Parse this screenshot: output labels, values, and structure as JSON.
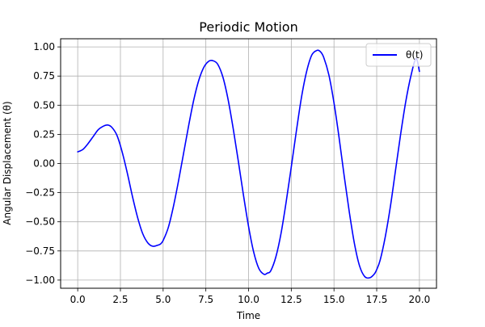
{
  "chart_data": {
    "type": "line",
    "title": "Periodic Motion",
    "xlabel": "Time",
    "ylabel": "Angular Displacement (θ)",
    "xlim": [
      -1.0,
      21.0
    ],
    "ylim": [
      -1.07,
      1.07
    ],
    "xticks": [
      0.0,
      2.5,
      5.0,
      7.5,
      10.0,
      12.5,
      15.0,
      17.5,
      20.0
    ],
    "xtick_labels": [
      "0.0",
      "2.5",
      "5.0",
      "7.5",
      "10.0",
      "12.5",
      "15.0",
      "17.5",
      "20.0"
    ],
    "yticks": [
      -1.0,
      -0.75,
      -0.5,
      -0.25,
      0.0,
      0.25,
      0.5,
      0.75,
      1.0
    ],
    "ytick_labels": [
      "−1.00",
      "−0.75",
      "−0.50",
      "−0.25",
      "0.00",
      "0.25",
      "0.50",
      "0.75",
      "1.00"
    ],
    "grid": true,
    "legend_position": "top-right",
    "series": [
      {
        "name": "θ(t)",
        "color": "#0000ff",
        "x": [
          0.0,
          0.3,
          0.6,
          0.9,
          1.2,
          1.5,
          1.75,
          2.0,
          2.3,
          2.6,
          2.9,
          3.2,
          3.5,
          3.8,
          4.1,
          4.4,
          4.7,
          4.85,
          5.0,
          5.3,
          5.6,
          5.9,
          6.2,
          6.5,
          6.8,
          7.1,
          7.4,
          7.7,
          7.95,
          8.2,
          8.5,
          8.8,
          9.1,
          9.4,
          9.7,
          10.0,
          10.3,
          10.6,
          10.9,
          11.1,
          11.3,
          11.6,
          11.9,
          12.2,
          12.5,
          12.8,
          13.1,
          13.4,
          13.7,
          14.0,
          14.2,
          14.4,
          14.7,
          15.0,
          15.3,
          15.6,
          15.9,
          16.2,
          16.5,
          16.8,
          17.1,
          17.35,
          17.5,
          17.7,
          18.0,
          18.3,
          18.6,
          18.9,
          19.2,
          19.5,
          19.8,
          20.0
        ],
        "y": [
          0.1,
          0.12,
          0.17,
          0.23,
          0.29,
          0.32,
          0.33,
          0.31,
          0.24,
          0.1,
          -0.08,
          -0.28,
          -0.46,
          -0.6,
          -0.68,
          -0.71,
          -0.7,
          -0.69,
          -0.66,
          -0.55,
          -0.37,
          -0.15,
          0.09,
          0.33,
          0.55,
          0.72,
          0.83,
          0.88,
          0.88,
          0.85,
          0.74,
          0.55,
          0.3,
          0.02,
          -0.27,
          -0.54,
          -0.76,
          -0.9,
          -0.95,
          -0.94,
          -0.92,
          -0.8,
          -0.6,
          -0.33,
          -0.03,
          0.28,
          0.57,
          0.79,
          0.93,
          0.97,
          0.96,
          0.91,
          0.76,
          0.52,
          0.22,
          -0.11,
          -0.42,
          -0.69,
          -0.88,
          -0.97,
          -0.98,
          -0.95,
          -0.91,
          -0.83,
          -0.63,
          -0.37,
          -0.06,
          0.25,
          0.53,
          0.75,
          0.9,
          0.79
        ]
      }
    ]
  }
}
